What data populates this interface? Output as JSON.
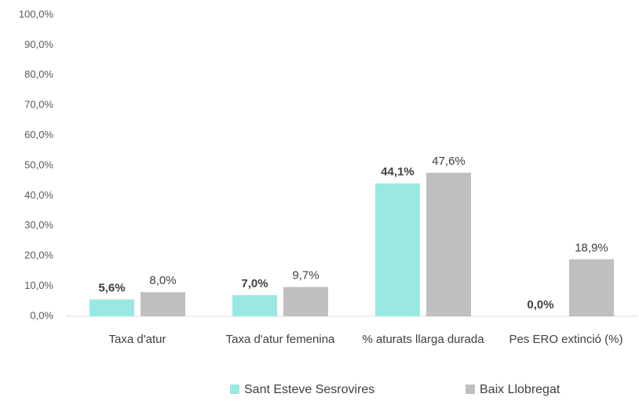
{
  "chart_data": {
    "type": "bar",
    "categories": [
      "Taxa d'atur",
      "Taxa d'atur femenina",
      "% aturats llarga durada",
      "Pes ERO extinció (%)"
    ],
    "series": [
      {
        "name": "Sant Esteve Sesrovires",
        "color": "#9be8e2",
        "values": [
          5.6,
          7.0,
          44.1,
          0.0
        ],
        "value_labels": [
          "5,6%",
          "7,0%",
          "44,1%",
          "0,0%"
        ]
      },
      {
        "name": "Baix Llobregat",
        "color": "#bfbfbf",
        "values": [
          8.0,
          9.7,
          47.6,
          18.9
        ],
        "value_labels": [
          "8,0%",
          "9,7%",
          "47,6%",
          "18,9%"
        ]
      }
    ],
    "ylim": [
      0,
      100
    ],
    "yticks": [
      {
        "value": 0,
        "label": "0,0%"
      },
      {
        "value": 10,
        "label": "10,0%"
      },
      {
        "value": 20,
        "label": "20,0%"
      },
      {
        "value": 30,
        "label": "30,0%"
      },
      {
        "value": 40,
        "label": "40,0%"
      },
      {
        "value": 50,
        "label": "50,0%"
      },
      {
        "value": 60,
        "label": "60,0%"
      },
      {
        "value": 70,
        "label": "70,0%"
      },
      {
        "value": 80,
        "label": "80,0%"
      },
      {
        "value": 90,
        "label": "90,0%"
      },
      {
        "value": 100,
        "label": "100,0%"
      }
    ],
    "grid": false,
    "legend": "bottom"
  }
}
